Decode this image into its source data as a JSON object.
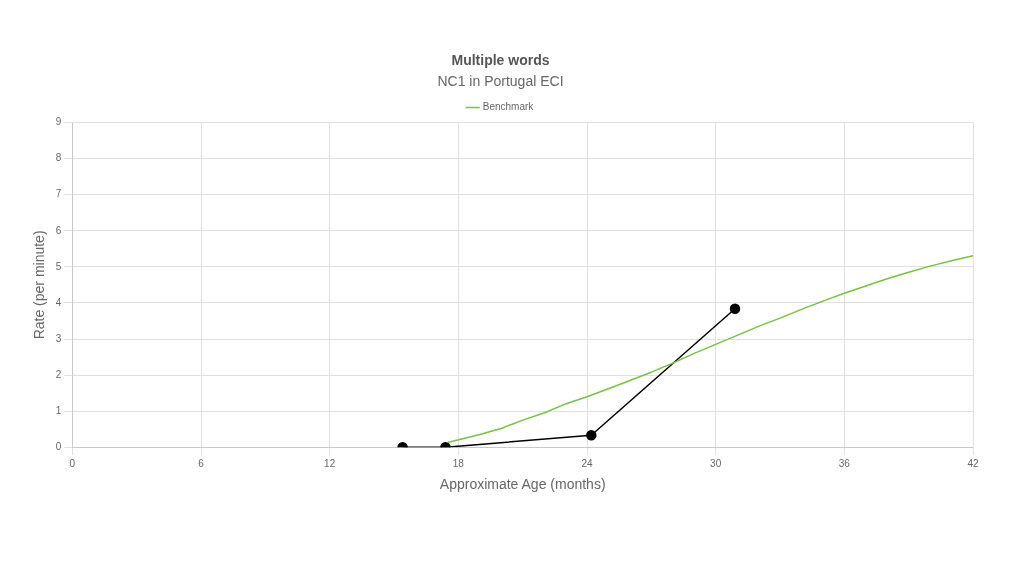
{
  "chart_data": {
    "type": "line",
    "title": "Multiple words",
    "subtitle": "NC1 in Portugal ECI",
    "xlabel": "Approximate Age (months)",
    "ylabel": "Rate (per minute)",
    "xlim": [
      0,
      42
    ],
    "xticks": [
      0,
      6,
      12,
      18,
      24,
      30,
      36,
      42
    ],
    "ylim": [
      0,
      9
    ],
    "yticks": [
      0,
      1,
      2,
      3,
      4,
      5,
      6,
      7,
      8,
      9
    ],
    "grid": true,
    "legend": "top",
    "series": [
      {
        "name": "Benchmark",
        "color": "#7ac143",
        "marker": "none",
        "x": [
          17.5,
          19,
          20,
          21,
          22,
          23,
          24,
          25,
          26,
          27,
          28,
          29,
          30,
          31,
          32,
          33,
          34,
          35,
          36,
          37,
          38,
          39,
          40,
          41,
          42
        ],
        "values": [
          0.13,
          0.35,
          0.52,
          0.75,
          0.95,
          1.2,
          1.4,
          1.62,
          1.85,
          2.08,
          2.33,
          2.6,
          2.85,
          3.1,
          3.35,
          3.58,
          3.82,
          4.05,
          4.27,
          4.47,
          4.67,
          4.85,
          5.02,
          5.17,
          5.31
        ]
      },
      {
        "color": "#000000",
        "marker": "circle",
        "x": [
          15.4,
          17.4,
          24.2,
          30.9
        ],
        "values": [
          0,
          0,
          0.33,
          3.84
        ]
      }
    ]
  }
}
